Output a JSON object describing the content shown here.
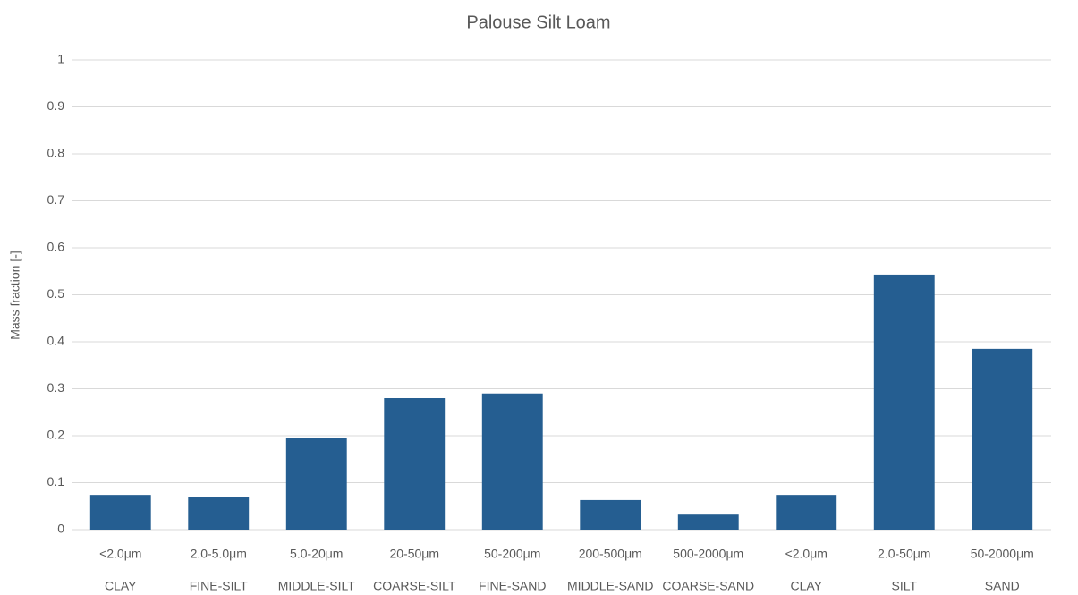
{
  "chart_data": {
    "type": "bar",
    "title": "Palouse Silt Loam",
    "y_label": "Mass fraction [-]",
    "categories": [
      "<2.0μm",
      "2.0-5.0μm",
      "5.0-20μm",
      "20-50μm",
      "50-200μm",
      "200-500μm",
      "500-2000μm",
      "<2.0μm",
      "2.0-50μm",
      "50-2000μm"
    ],
    "category_groups": [
      "CLAY",
      "FINE-SILT",
      "MIDDLE-SILT",
      "COARSE-SILT",
      "FINE-SAND",
      "MIDDLE-SAND",
      "COARSE-SAND",
      "CLAY",
      "SILT",
      "SAND"
    ],
    "values": [
      0.074,
      0.069,
      0.196,
      0.28,
      0.29,
      0.063,
      0.032,
      0.074,
      0.543,
      0.385
    ],
    "color": "#255e91",
    "ylim": [
      0,
      1
    ],
    "yticks": [
      0,
      0.1,
      0.2,
      0.3,
      0.4,
      0.5,
      0.6,
      0.7,
      0.8,
      0.9,
      1
    ],
    "grid": true
  }
}
